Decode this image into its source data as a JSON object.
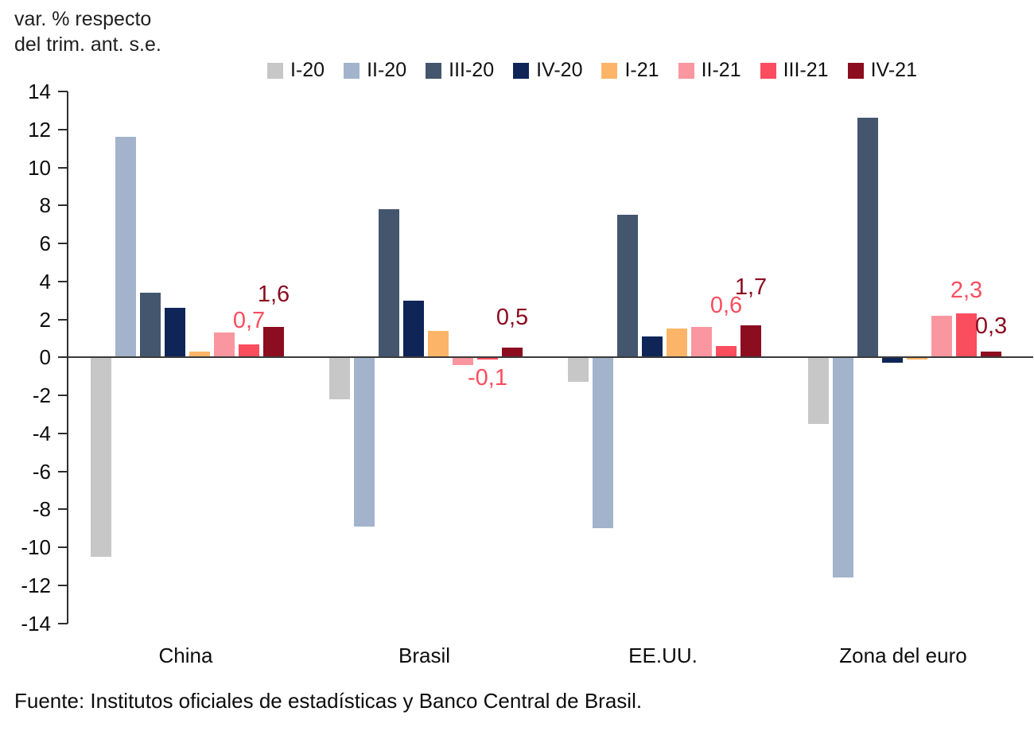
{
  "title_line1": "var. % respecto",
  "title_line2": "del trim. ant. s.e.",
  "footer": "Fuente: Institutos oficiales de estadísticas y Banco Central de Brasil.",
  "chart_data": {
    "type": "bar",
    "title": "var. % respecto del trim. ant. s.e.",
    "xlabel": "",
    "ylabel": "var. % respecto del trim. ant. s.e.",
    "ylim": [
      -14,
      14
    ],
    "ytick_step": 2,
    "yticklabels": [
      "14",
      "12",
      "10",
      "8",
      "6",
      "4",
      "2",
      "0",
      "-2",
      "-4",
      "-6",
      "-8",
      "-10",
      "-12",
      "-14"
    ],
    "grid": false,
    "legend_position": "top",
    "axis_color": "#2e2e2e",
    "categories": [
      "China",
      "Brasil",
      "EE.UU.",
      "Zona del euro"
    ],
    "series": [
      {
        "name": "I-20",
        "color": "#c7c7c7",
        "values": [
          -10.5,
          -2.2,
          -1.3,
          -3.5
        ]
      },
      {
        "name": "II-20",
        "color": "#a2b3cb",
        "values": [
          11.6,
          -8.9,
          -9.0,
          -11.6
        ]
      },
      {
        "name": "III-20",
        "color": "#44566e",
        "values": [
          3.4,
          7.8,
          7.5,
          12.6
        ]
      },
      {
        "name": "IV-20",
        "color": "#0f2557",
        "values": [
          2.6,
          3.0,
          1.1,
          -0.3
        ]
      },
      {
        "name": "I-21",
        "color": "#fcb568",
        "values": [
          0.3,
          1.4,
          1.5,
          -0.1
        ]
      },
      {
        "name": "II-21",
        "color": "#fa96a0",
        "values": [
          1.3,
          -0.4,
          1.6,
          2.2
        ]
      },
      {
        "name": "III-21",
        "color": "#fa4d5e",
        "values": [
          0.7,
          -0.1,
          0.6,
          2.3
        ]
      },
      {
        "name": "IV-21",
        "color": "#8c0c20",
        "values": [
          1.6,
          0.5,
          1.7,
          0.3
        ]
      }
    ],
    "annotations": [
      {
        "category": "China",
        "series": "III-21",
        "text": "0,7",
        "dy": 7
      },
      {
        "category": "China",
        "series": "IV-21",
        "text": "1,6",
        "dy": 18
      },
      {
        "category": "Brasil",
        "series": "III-21",
        "text": "-0,1",
        "dy": 0
      },
      {
        "category": "Brasil",
        "series": "IV-21",
        "text": "0,5",
        "dy": 15
      },
      {
        "category": "EE.UU.",
        "series": "III-21",
        "text": "0,6",
        "dy": 28
      },
      {
        "category": "EE.UU.",
        "series": "IV-21",
        "text": "1,7",
        "dy": 25
      },
      {
        "category": "Zona del euro",
        "series": "III-21",
        "text": "2,3",
        "dy": 6
      },
      {
        "category": "Zona del euro",
        "series": "IV-21",
        "text": "0,3",
        "dy": 9
      }
    ]
  }
}
